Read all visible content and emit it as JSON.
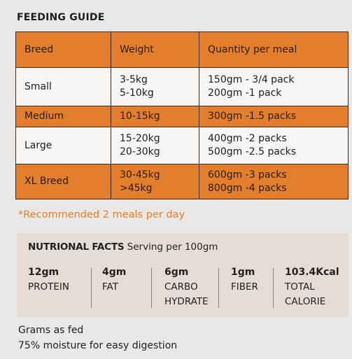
{
  "title": "FEEDING GUIDE",
  "table": {
    "headers": [
      "Breed",
      "Weight",
      "Quantity per meal"
    ],
    "rows": [
      {
        "breed": "Small",
        "weight": [
          "3-5kg",
          "5-10kg"
        ],
        "quantity": [
          "150gm - 3/4 pack",
          "200gm -1 pack"
        ]
      },
      {
        "breed": "Medium",
        "weight": [
          "10-15kg"
        ],
        "quantity": [
          "300gm -1.5 packs"
        ]
      },
      {
        "breed": "Large",
        "weight": [
          "15-20kg",
          "20-30kg"
        ],
        "quantity": [
          "400gm -2 packs",
          "500gm -2.5 packs"
        ]
      },
      {
        "breed": "XL Breed",
        "weight": [
          "30-45kg",
          ">45kg"
        ],
        "quantity": [
          "600gm -3 packs",
          "800gm -4 packs"
        ]
      }
    ]
  },
  "note": "*Recommended 2 meals per day",
  "nutrition": {
    "heading": "NUTRIONAL FACTS",
    "serving": "Serving per 100gm",
    "facts": [
      {
        "amount": "12gm",
        "label": [
          "PROTEIN"
        ]
      },
      {
        "amount": "4gm",
        "label": [
          "FAT"
        ]
      },
      {
        "amount": "6gm",
        "label": [
          "CARBO",
          "HYDRATE"
        ]
      },
      {
        "amount": "1gm",
        "label": [
          "FIBER"
        ]
      },
      {
        "amount": "103.4Kcal",
        "label": [
          "TOTAL",
          "CALORIE"
        ]
      }
    ]
  },
  "footer": [
    "Grams as fed",
    "75% moisture for easy digestion"
  ],
  "colors": {
    "accent": "#e37f2c",
    "row_light": "#f7f6f4",
    "panel": "#e4dcd5"
  }
}
